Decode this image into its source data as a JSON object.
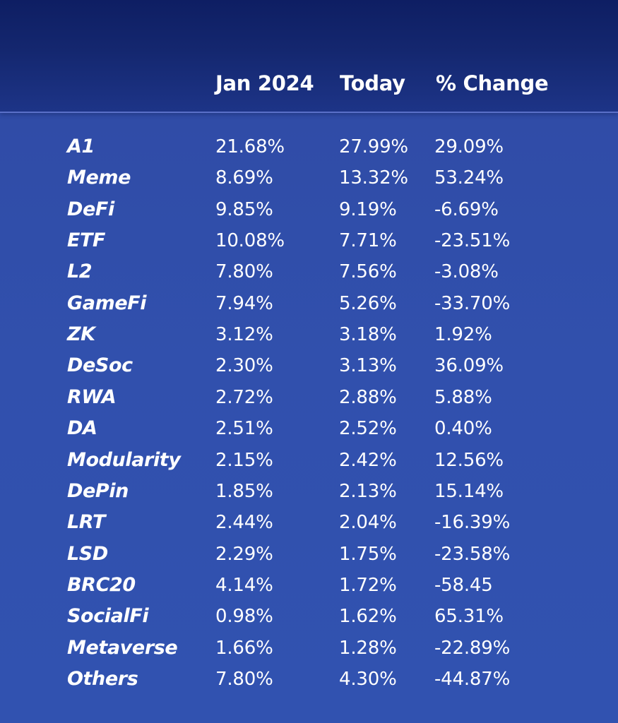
{
  "chart_data": {
    "type": "table",
    "columns": [
      "Jan 2024",
      "Today",
      "% Change"
    ],
    "rows": [
      {
        "category": "A1",
        "jan_2024": "21.68%",
        "today": "27.99%",
        "change": "29.09%"
      },
      {
        "category": "Meme",
        "jan_2024": "8.69%",
        "today": "13.32%",
        "change": "53.24%"
      },
      {
        "category": "DeFi",
        "jan_2024": "9.85%",
        "today": "9.19%",
        "change": "-6.69%"
      },
      {
        "category": "ETF",
        "jan_2024": "10.08%",
        "today": "7.71%",
        "change": "-23.51%"
      },
      {
        "category": "L2",
        "jan_2024": "7.80%",
        "today": "7.56%",
        "change": "-3.08%"
      },
      {
        "category": "GameFi",
        "jan_2024": "7.94%",
        "today": "5.26%",
        "change": "-33.70%"
      },
      {
        "category": "ZK",
        "jan_2024": "3.12%",
        "today": "3.18%",
        "change": "1.92%"
      },
      {
        "category": "DeSoc",
        "jan_2024": "2.30%",
        "today": "3.13%",
        "change": "36.09%"
      },
      {
        "category": "RWA",
        "jan_2024": "2.72%",
        "today": "2.88%",
        "change": "5.88%"
      },
      {
        "category": "DA",
        "jan_2024": "2.51%",
        "today": "2.52%",
        "change": "0.40%"
      },
      {
        "category": "Modularity",
        "jan_2024": "2.15%",
        "today": "2.42%",
        "change": "12.56%"
      },
      {
        "category": "DePin",
        "jan_2024": "1.85%",
        "today": "2.13%",
        "change": "15.14%"
      },
      {
        "category": "LRT",
        "jan_2024": "2.44%",
        "today": "2.04%",
        "change": "-16.39%"
      },
      {
        "category": "LSD",
        "jan_2024": "2.29%",
        "today": "1.75%",
        "change": "-23.58%"
      },
      {
        "category": "BRC20",
        "jan_2024": "4.14%",
        "today": "1.72%",
        "change": "-58.45"
      },
      {
        "category": "SocialFi",
        "jan_2024": "0.98%",
        "today": "1.62%",
        "change": "65.31%"
      },
      {
        "category": "Metaverse",
        "jan_2024": "1.66%",
        "today": "1.28%",
        "change": "-22.89%"
      },
      {
        "category": "Others",
        "jan_2024": "7.80%",
        "today": "4.30%",
        "change": "-44.87%"
      }
    ]
  }
}
